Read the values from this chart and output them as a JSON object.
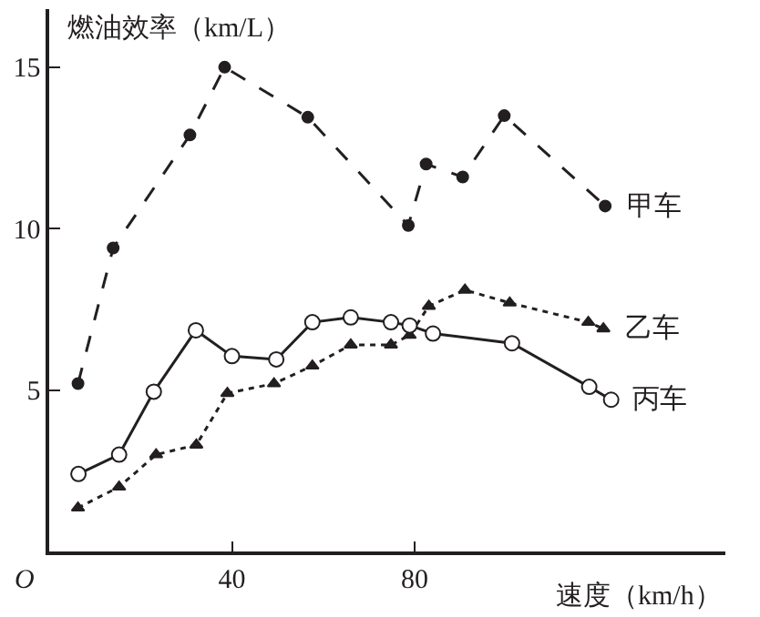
{
  "chart_data": {
    "type": "line",
    "xlabel": "速度（km/h）",
    "ylabel": "燃油效率（km/L）",
    "xlim": [
      0,
      148
    ],
    "ylim": [
      0,
      16.8
    ],
    "xticks": [
      40,
      80
    ],
    "yticks": [
      5,
      10,
      15
    ],
    "legend": false,
    "annotations": [
      "O"
    ],
    "series": [
      {
        "name": "甲车",
        "color": "#231f20",
        "line_style": "dashed",
        "marker": "circle",
        "x": [
          6.3,
          14,
          30.8,
          38.4,
          56.6,
          78.6,
          82.5,
          90.5,
          99.6,
          121.7
        ],
        "values": [
          5.2,
          9.4,
          12.9,
          15.0,
          13.45,
          10.1,
          12.0,
          11.6,
          13.5,
          10.7
        ]
      },
      {
        "name": "乙车",
        "color": "#231f20",
        "line_style": "dotted",
        "marker": "triangle",
        "x": [
          6.3,
          15.3,
          23.4,
          32.2,
          39,
          49.2,
          57.6,
          66,
          74.8,
          78.9,
          83.1,
          91,
          100.8,
          118,
          121.3
        ],
        "values": [
          1.35,
          2.0,
          3.0,
          3.3,
          4.9,
          5.2,
          5.75,
          6.4,
          6.4,
          6.7,
          7.6,
          8.1,
          7.7,
          7.1,
          6.9
        ]
      },
      {
        "name": "丙车",
        "color": "#231f20",
        "line_style": "solid",
        "marker": "circle",
        "x": [
          6.4,
          15.3,
          22.9,
          32.1,
          40,
          49.7,
          57.6,
          66,
          74.8,
          78.9,
          84,
          101.3,
          118.2,
          123
        ],
        "values": [
          2.4,
          3.0,
          4.95,
          6.85,
          6.05,
          5.95,
          7.1,
          7.25,
          7.1,
          7.0,
          6.75,
          6.45,
          5.1,
          4.7
        ]
      }
    ]
  }
}
